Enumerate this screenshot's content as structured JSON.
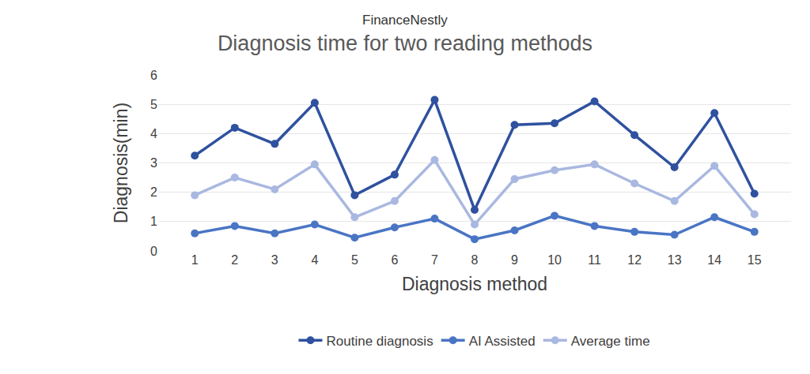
{
  "chart_data": {
    "type": "line",
    "title": "Diagnosis time for two reading methods",
    "annotations": [
      "FinanceNestly"
    ],
    "x_label": "Diagnosis method",
    "y_label": "Diagnosis(min)",
    "categories": [
      "1",
      "2",
      "3",
      "4",
      "5",
      "6",
      "7",
      "8",
      "9",
      "10",
      "11",
      "12",
      "13",
      "14",
      "15"
    ],
    "series": [
      {
        "name": "Routine diagnosis",
        "color": "#2f519f",
        "marker": "circle",
        "values": [
          3.25,
          4.2,
          3.65,
          5.05,
          1.9,
          2.6,
          5.15,
          1.4,
          4.3,
          4.35,
          5.1,
          3.95,
          2.85,
          4.7,
          1.95
        ]
      },
      {
        "name": "AI Assisted",
        "color": "#4a75c4",
        "marker": "circle",
        "values": [
          0.6,
          0.85,
          0.6,
          0.9,
          0.45,
          0.8,
          1.1,
          0.4,
          0.7,
          1.2,
          0.85,
          0.65,
          0.55,
          1.15,
          0.65
        ]
      },
      {
        "name": "Average time",
        "color": "#a9b8e0",
        "marker": "circle",
        "values": [
          1.9,
          2.5,
          2.1,
          2.95,
          1.15,
          1.7,
          3.1,
          0.9,
          2.45,
          2.75,
          2.95,
          2.3,
          1.7,
          2.9,
          1.25
        ]
      }
    ],
    "ylim": [
      0,
      6
    ],
    "yticks": [
      0,
      1,
      2,
      3,
      4,
      5,
      6
    ],
    "grid": true,
    "legend": "bottom"
  }
}
